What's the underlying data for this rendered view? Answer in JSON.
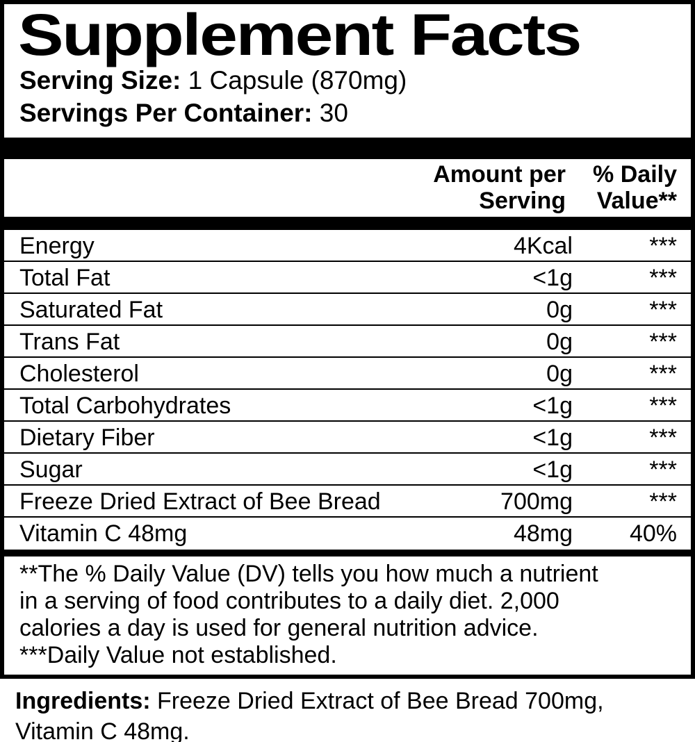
{
  "title": "Supplement Facts",
  "serving": {
    "size_label": "Serving Size:",
    "size_value": " 1 Capsule (870mg)",
    "container_label": "Servings Per Container:",
    "container_value": " 30"
  },
  "table": {
    "header": {
      "amount_header": "Amount per\nServing",
      "dv_header": "% Daily\nValue**"
    },
    "rows": [
      {
        "name": "Energy",
        "amount": "4Kcal",
        "dv": "***"
      },
      {
        "name": "Total Fat",
        "amount": "<1g",
        "dv": "***"
      },
      {
        "name": "Saturated Fat",
        "amount": "0g",
        "dv": "***"
      },
      {
        "name": "Trans Fat",
        "amount": "0g",
        "dv": "***"
      },
      {
        "name": "Cholesterol",
        "amount": "0g",
        "dv": "***"
      },
      {
        "name": "Total Carbohydrates",
        "amount": "<1g",
        "dv": "***"
      },
      {
        "name": "Dietary Fiber",
        "amount": "<1g",
        "dv": "***"
      },
      {
        "name": "Sugar",
        "amount": "<1g",
        "dv": "***"
      },
      {
        "name": "Freeze Dried Extract of Bee Bread",
        "amount": "700mg",
        "dv": "***"
      },
      {
        "name": "Vitamin C 48mg",
        "amount": "48mg",
        "dv": "40%"
      }
    ]
  },
  "footnote_text": "**The % Daily Value (DV) tells you how much a nutrient\nin a serving of food contributes to a daily diet. 2,000\ncalories a day is used for general nutrition advice.\n***Daily Value not established.",
  "ingredients": {
    "label": "Ingredients:",
    "value": " Freeze Dried Extract of Bee Bread 700mg, Vitamin C 48mg."
  },
  "colors": {
    "text": "#000000",
    "background": "#ffffff"
  }
}
